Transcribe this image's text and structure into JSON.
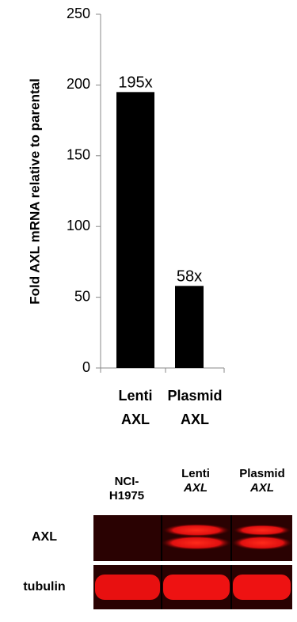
{
  "chart_data": {
    "type": "bar",
    "ylabel": "Fold AXL mRNA relative to parental",
    "categories": [
      "Lenti AXL",
      "Plasmid AXL"
    ],
    "values": [
      195,
      58
    ],
    "value_labels": [
      "195x",
      "58x"
    ],
    "color": "#000000",
    "ylim": [
      0,
      250
    ],
    "yticks": [
      0,
      50,
      100,
      150,
      200,
      250
    ]
  },
  "blot": {
    "lanes": [
      [
        "NCI-",
        "H1975"
      ],
      [
        "Lenti",
        "AXL"
      ],
      [
        "Plasmid",
        "AXL"
      ]
    ],
    "rows": [
      "AXL",
      "tubulin"
    ]
  }
}
